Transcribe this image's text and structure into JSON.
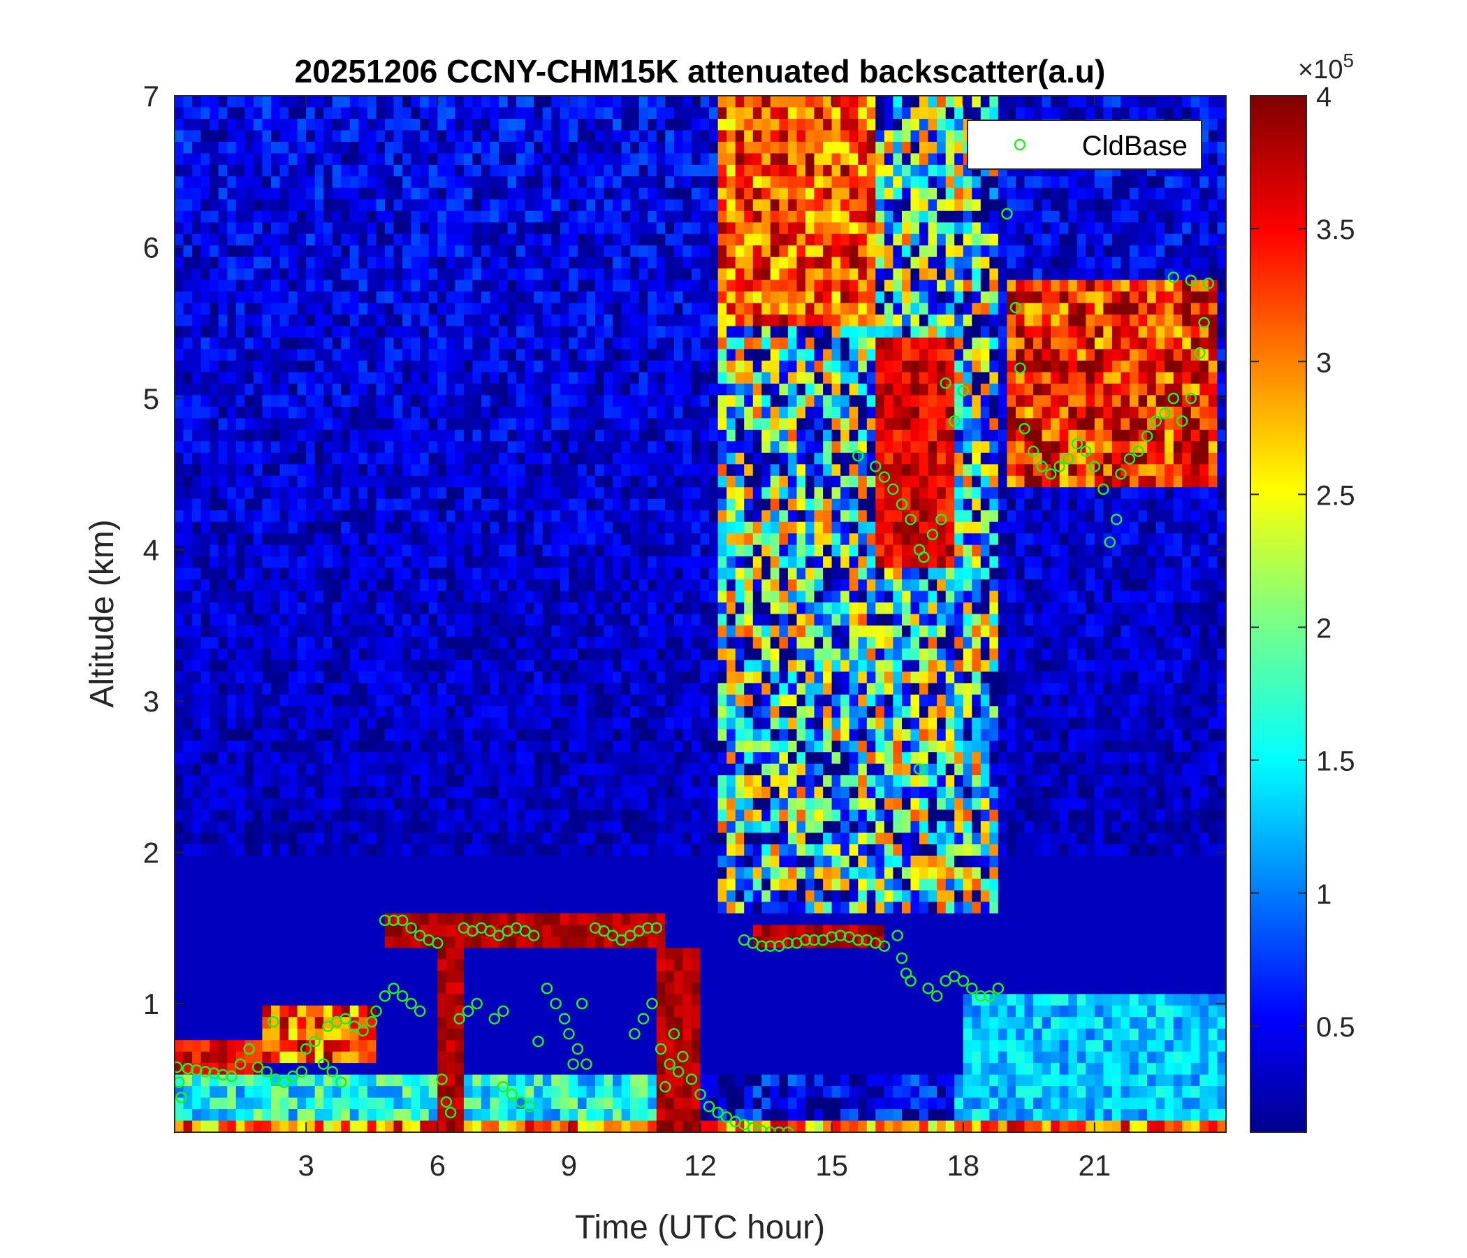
{
  "chart_data": {
    "type": "heatmap",
    "title": "20251206 CCNY-CHM15K attenuated backscatter(a.u)",
    "xlabel": "Time (UTC hour)",
    "ylabel": "Altitude (km)",
    "xlim": [
      0,
      24
    ],
    "ylim": [
      0.15,
      7
    ],
    "xticks": [
      3,
      6,
      9,
      12,
      15,
      18,
      21
    ],
    "xtick_labels": [
      "3",
      "6",
      "9",
      "12",
      "15",
      "18",
      "21"
    ],
    "yticks": [
      1,
      2,
      3,
      4,
      5,
      6,
      7
    ],
    "ytick_labels": [
      "1",
      "2",
      "3",
      "4",
      "5",
      "6",
      "7"
    ],
    "colorbar": {
      "colormap": "jet",
      "range": [
        0.1,
        4
      ],
      "ticks": [
        0.5,
        1,
        1.5,
        2,
        2.5,
        3,
        3.5,
        4
      ],
      "tick_labels": [
        "0.5",
        "1",
        "1.5",
        "2",
        "2.5",
        "3",
        "3.5",
        "4"
      ],
      "exponent_label": "×10",
      "exponent_power": "5"
    },
    "grid": false,
    "legend": {
      "placement": "top-right"
    },
    "series": [
      {
        "name": "CldBase",
        "marker": "circle-open",
        "color": "#22ee22",
        "points": [
          [
            0.05,
            0.58
          ],
          [
            0.1,
            0.48
          ],
          [
            0.15,
            0.38
          ],
          [
            0.3,
            0.57
          ],
          [
            0.5,
            0.56
          ],
          [
            0.7,
            0.55
          ],
          [
            0.9,
            0.54
          ],
          [
            1.1,
            0.53
          ],
          [
            1.3,
            0.52
          ],
          [
            1.5,
            0.6
          ],
          [
            1.7,
            0.7
          ],
          [
            1.9,
            0.58
          ],
          [
            2.1,
            0.55
          ],
          [
            2.3,
            0.5
          ],
          [
            2.25,
            0.88
          ],
          [
            2.5,
            0.48
          ],
          [
            2.7,
            0.52
          ],
          [
            2.9,
            0.55
          ],
          [
            3.0,
            0.7
          ],
          [
            3.2,
            0.75
          ],
          [
            3.4,
            0.6
          ],
          [
            3.6,
            0.55
          ],
          [
            3.8,
            0.48
          ],
          [
            3.5,
            0.85
          ],
          [
            3.7,
            0.88
          ],
          [
            3.9,
            0.9
          ],
          [
            4.1,
            0.85
          ],
          [
            4.3,
            0.82
          ],
          [
            4.5,
            0.88
          ],
          [
            4.6,
            0.95
          ],
          [
            4.8,
            1.05
          ],
          [
            5.0,
            1.1
          ],
          [
            5.2,
            1.05
          ],
          [
            5.4,
            1.0
          ],
          [
            5.6,
            0.95
          ],
          [
            4.8,
            1.55
          ],
          [
            5.0,
            1.55
          ],
          [
            5.2,
            1.55
          ],
          [
            5.4,
            1.5
          ],
          [
            5.6,
            1.45
          ],
          [
            5.8,
            1.42
          ],
          [
            6.0,
            1.4
          ],
          [
            6.1,
            0.5
          ],
          [
            6.2,
            0.35
          ],
          [
            6.3,
            0.28
          ],
          [
            6.5,
            0.9
          ],
          [
            6.7,
            0.95
          ],
          [
            6.9,
            1.0
          ],
          [
            6.6,
            1.5
          ],
          [
            6.8,
            1.48
          ],
          [
            7.0,
            1.5
          ],
          [
            7.2,
            1.48
          ],
          [
            7.4,
            1.45
          ],
          [
            7.3,
            0.9
          ],
          [
            7.5,
            0.95
          ],
          [
            7.6,
            1.48
          ],
          [
            7.8,
            1.5
          ],
          [
            8.0,
            1.48
          ],
          [
            8.2,
            1.45
          ],
          [
            7.5,
            0.45
          ],
          [
            7.7,
            0.4
          ],
          [
            7.9,
            0.35
          ],
          [
            8.1,
            0.32
          ],
          [
            8.5,
            1.1
          ],
          [
            8.7,
            1.0
          ],
          [
            8.9,
            0.9
          ],
          [
            9.0,
            0.8
          ],
          [
            9.2,
            0.7
          ],
          [
            9.4,
            0.6
          ],
          [
            8.3,
            0.75
          ],
          [
            9.1,
            0.6
          ],
          [
            9.3,
            1.0
          ],
          [
            9.6,
            1.5
          ],
          [
            9.8,
            1.48
          ],
          [
            10.0,
            1.45
          ],
          [
            10.2,
            1.42
          ],
          [
            10.4,
            1.45
          ],
          [
            10.6,
            1.48
          ],
          [
            10.8,
            1.5
          ],
          [
            11.0,
            1.5
          ],
          [
            10.5,
            0.8
          ],
          [
            10.7,
            0.9
          ],
          [
            10.9,
            1.0
          ],
          [
            11.1,
            0.7
          ],
          [
            11.3,
            0.6
          ],
          [
            11.5,
            0.55
          ],
          [
            11.2,
            0.45
          ],
          [
            11.4,
            0.8
          ],
          [
            11.6,
            0.65
          ],
          [
            11.8,
            0.5
          ],
          [
            12.0,
            0.4
          ],
          [
            12.2,
            0.32
          ],
          [
            12.4,
            0.28
          ],
          [
            12.6,
            0.25
          ],
          [
            12.8,
            0.22
          ],
          [
            13.0,
            0.2
          ],
          [
            13.2,
            0.18
          ],
          [
            13.4,
            0.16
          ],
          [
            13.6,
            0.15
          ],
          [
            13.8,
            0.15
          ],
          [
            14.0,
            0.15
          ],
          [
            13.0,
            1.42
          ],
          [
            13.2,
            1.4
          ],
          [
            13.4,
            1.38
          ],
          [
            13.6,
            1.38
          ],
          [
            13.8,
            1.38
          ],
          [
            14.0,
            1.4
          ],
          [
            14.2,
            1.4
          ],
          [
            14.4,
            1.42
          ],
          [
            14.6,
            1.42
          ],
          [
            14.8,
            1.42
          ],
          [
            15.0,
            1.44
          ],
          [
            15.2,
            1.45
          ],
          [
            15.4,
            1.44
          ],
          [
            15.6,
            1.42
          ],
          [
            15.8,
            1.42
          ],
          [
            16.0,
            1.4
          ],
          [
            16.2,
            1.38
          ],
          [
            16.5,
            1.45
          ],
          [
            16.6,
            1.3
          ],
          [
            16.7,
            1.2
          ],
          [
            16.8,
            1.15
          ],
          [
            17.0,
            2.55
          ],
          [
            17.2,
            1.1
          ],
          [
            17.4,
            1.05
          ],
          [
            17.6,
            1.15
          ],
          [
            17.8,
            1.18
          ],
          [
            18.0,
            1.15
          ],
          [
            18.2,
            1.1
          ],
          [
            18.4,
            1.05
          ],
          [
            18.6,
            1.05
          ],
          [
            18.8,
            1.1
          ],
          [
            15.6,
            4.62
          ],
          [
            16.0,
            4.55
          ],
          [
            16.2,
            4.48
          ],
          [
            16.4,
            4.4
          ],
          [
            16.6,
            4.3
          ],
          [
            16.8,
            4.2
          ],
          [
            17.0,
            4.0
          ],
          [
            17.1,
            3.95
          ],
          [
            17.3,
            4.1
          ],
          [
            17.5,
            4.2
          ],
          [
            17.8,
            4.85
          ],
          [
            18.0,
            5.05
          ],
          [
            17.6,
            5.1
          ],
          [
            19.0,
            6.22
          ],
          [
            19.2,
            5.6
          ],
          [
            19.3,
            5.2
          ],
          [
            19.4,
            4.8
          ],
          [
            19.6,
            4.65
          ],
          [
            19.8,
            4.55
          ],
          [
            20.0,
            4.5
          ],
          [
            20.2,
            4.55
          ],
          [
            20.4,
            4.6
          ],
          [
            20.6,
            4.7
          ],
          [
            20.8,
            4.65
          ],
          [
            21.0,
            4.55
          ],
          [
            21.2,
            4.4
          ],
          [
            21.35,
            4.05
          ],
          [
            21.5,
            4.2
          ],
          [
            21.6,
            4.5
          ],
          [
            21.8,
            4.6
          ],
          [
            22.0,
            4.65
          ],
          [
            22.2,
            4.75
          ],
          [
            22.4,
            4.85
          ],
          [
            22.6,
            4.9
          ],
          [
            22.8,
            5.0
          ],
          [
            23.0,
            4.85
          ],
          [
            23.2,
            5.0
          ],
          [
            23.4,
            5.3
          ],
          [
            23.5,
            5.5
          ],
          [
            23.6,
            5.76
          ],
          [
            22.8,
            5.8
          ],
          [
            23.2,
            5.78
          ]
        ]
      }
    ]
  }
}
